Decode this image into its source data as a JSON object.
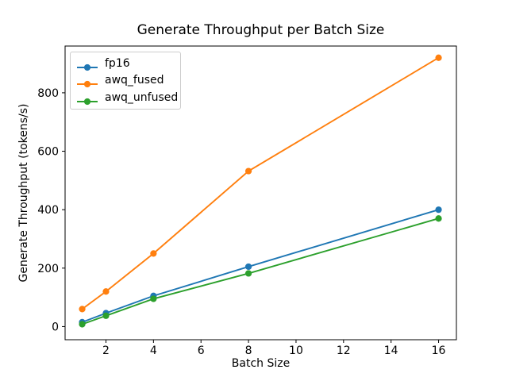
{
  "chart_data": {
    "type": "line",
    "title": "Generate Throughput per Batch Size",
    "xlabel": "Batch Size",
    "ylabel": "Generate Throughput (tokens/s)",
    "x": [
      1,
      2,
      4,
      8,
      16
    ],
    "series": [
      {
        "name": "fp16",
        "color": "#1f77b4",
        "values": [
          15,
          46,
          105,
          205,
          400
        ]
      },
      {
        "name": "awq_fused",
        "color": "#ff7f0e",
        "values": [
          60,
          120,
          250,
          532,
          920
        ]
      },
      {
        "name": "awq_unfused",
        "color": "#2ca02c",
        "values": [
          8,
          37,
          95,
          182,
          370
        ]
      }
    ],
    "xticks": [
      2,
      4,
      6,
      8,
      10,
      12,
      14,
      16
    ],
    "yticks": [
      0,
      200,
      400,
      600,
      800
    ],
    "xlim": [
      0.28,
      16.75
    ],
    "ylim": [
      -45,
      960
    ],
    "marker": "o",
    "grid": false,
    "legend_position": "upper left",
    "background": "#ffffff",
    "axis_color": "#000000"
  }
}
